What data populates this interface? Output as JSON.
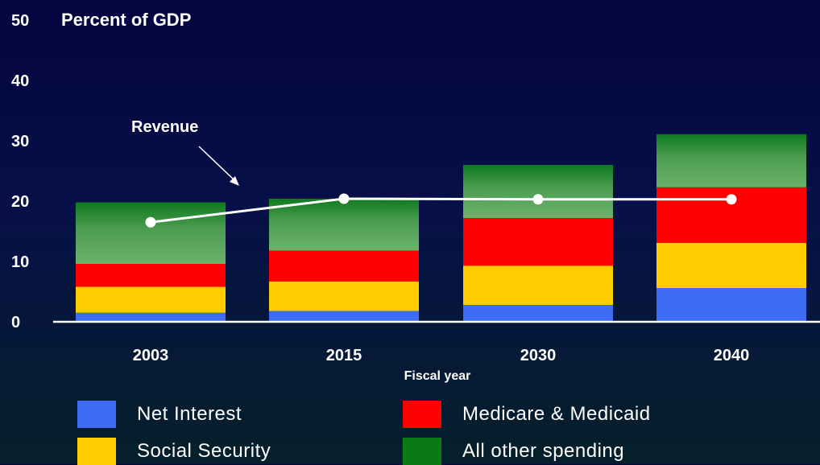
{
  "chart_data": {
    "type": "bar",
    "stacked": true,
    "ylabel": "Percent of GDP",
    "xlabel": "Fiscal year",
    "ylim": [
      0,
      50
    ],
    "yticks": [
      0,
      10,
      20,
      30,
      40,
      50
    ],
    "categories": [
      "2003",
      "2015",
      "2030",
      "2040"
    ],
    "series": [
      {
        "name": "Net Interest",
        "color": "#3d6cf2",
        "values": [
          1.5,
          1.8,
          2.8,
          5.6
        ]
      },
      {
        "name": "Social Security",
        "color": "#ffcc00",
        "values": [
          4.3,
          4.9,
          6.5,
          7.5
        ]
      },
      {
        "name": "Medicare & Medicaid",
        "color": "#ff0000",
        "values": [
          3.8,
          5.1,
          7.9,
          9.2
        ]
      },
      {
        "name": "All other spending",
        "color": "#4a9a4a",
        "values": [
          10.2,
          8.6,
          8.8,
          8.8
        ]
      }
    ],
    "line": {
      "name": "Revenue",
      "values": [
        16.5,
        20.4,
        20.3,
        20.3
      ]
    },
    "annotation": "Revenue",
    "grid": false,
    "legend_position": "bottom"
  }
}
